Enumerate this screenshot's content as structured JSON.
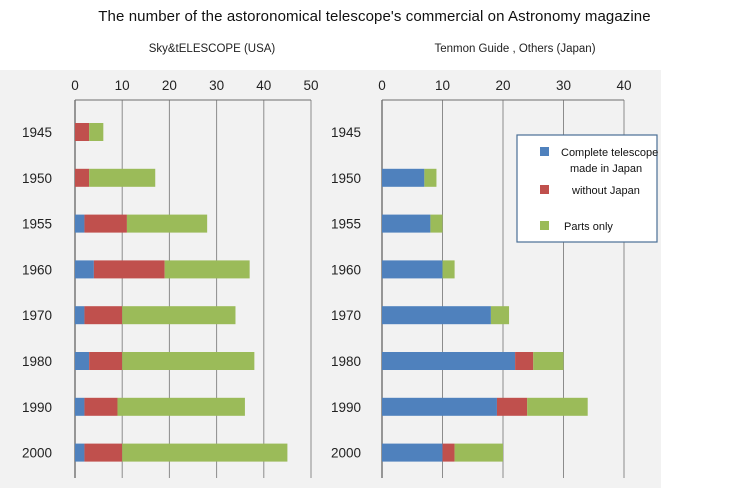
{
  "title": "The number of the astoronomical  telescope's commercial on Astronomy magazine",
  "colors": {
    "complete": "#4f81bd",
    "without": "#c0504d",
    "parts": "#9bbb59",
    "axis": "#6f6f6f",
    "grid": "#8c8c8c",
    "panel_bg": "#f2f2f2"
  },
  "legend": {
    "placement": "right-top of second chart",
    "entries": [
      {
        "lines": [
          "Complete telescope",
          "made in  Japan"
        ]
      },
      {
        "lines": [
          "without  Japan"
        ]
      },
      {
        "lines": [
          "Parts only"
        ]
      }
    ]
  },
  "chart_data": [
    {
      "type": "bar",
      "orientation": "horizontal",
      "stacked": true,
      "title": "Sky&tELESCOPE  (USA)",
      "categories": [
        "1945",
        "1950",
        "1955",
        "1960",
        "1970",
        "1980",
        "1990",
        "2000"
      ],
      "xlim": [
        0,
        50
      ],
      "xticks": [
        "0",
        "10",
        "20",
        "30",
        "40",
        "50"
      ],
      "grid": true,
      "series": [
        {
          "name": "Complete telescope made in  Japan",
          "values": [
            0,
            0,
            2,
            4,
            2,
            3,
            2,
            2
          ]
        },
        {
          "name": "without  Japan",
          "values": [
            3,
            3,
            9,
            15,
            8,
            7,
            7,
            8
          ]
        },
        {
          "name": "Parts only",
          "values": [
            3,
            14,
            17,
            18,
            24,
            28,
            27,
            35
          ]
        }
      ]
    },
    {
      "type": "bar",
      "orientation": "horizontal",
      "stacked": true,
      "title": "Tenmon Guide , Others  (Japan)",
      "categories": [
        "1945",
        "1950",
        "1955",
        "1960",
        "1970",
        "1980",
        "1990",
        "2000"
      ],
      "xlim": [
        0,
        40
      ],
      "xticks": [
        "0",
        "10",
        "20",
        "30",
        "40"
      ],
      "grid": true,
      "series": [
        {
          "name": "Complete telescope made in  Japan",
          "values": [
            0,
            7,
            8,
            10,
            18,
            22,
            19,
            10
          ]
        },
        {
          "name": "without  Japan",
          "values": [
            0,
            0,
            0,
            0,
            0,
            3,
            5,
            2
          ]
        },
        {
          "name": "Parts only",
          "values": [
            0,
            2,
            2,
            2,
            3,
            5,
            10,
            8
          ]
        }
      ]
    }
  ]
}
